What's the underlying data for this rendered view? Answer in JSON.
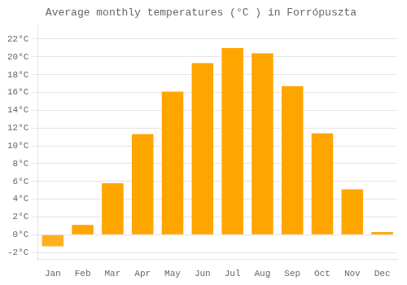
{
  "chart_data": {
    "type": "bar",
    "title": "Average monthly temperatures (°C ) in Forrópuszta",
    "categories": [
      "Jan",
      "Feb",
      "Mar",
      "Apr",
      "May",
      "Jun",
      "Jul",
      "Aug",
      "Sep",
      "Oct",
      "Nov",
      "Dec"
    ],
    "values": [
      -1.3,
      1.1,
      5.8,
      11.3,
      16.1,
      19.3,
      21.0,
      20.4,
      16.7,
      11.4,
      5.1,
      0.3
    ],
    "colors": [
      "#FFB020",
      "#FFA500",
      "#FFA500",
      "#FFA500",
      "#FFA500",
      "#FFA500",
      "#FFA500",
      "#FFA500",
      "#FFA500",
      "#FFA500",
      "#FFA500",
      "#FFA500"
    ],
    "ylim": [
      -2.8,
      23.5
    ],
    "yticks": [
      {
        "value": -2,
        "label": "-2°C"
      },
      {
        "value": 0,
        "label": "0°C"
      },
      {
        "value": 2,
        "label": "2°C"
      },
      {
        "value": 4,
        "label": "4°C"
      },
      {
        "value": 6,
        "label": "6°C"
      },
      {
        "value": 8,
        "label": "8°C"
      },
      {
        "value": 10,
        "label": "10°C"
      },
      {
        "value": 12,
        "label": "12°C"
      },
      {
        "value": 14,
        "label": "14°C"
      },
      {
        "value": 16,
        "label": "16°C"
      },
      {
        "value": 18,
        "label": "18°C"
      },
      {
        "value": 20,
        "label": "20°C"
      },
      {
        "value": 22,
        "label": "22°C"
      }
    ],
    "grid": true
  }
}
